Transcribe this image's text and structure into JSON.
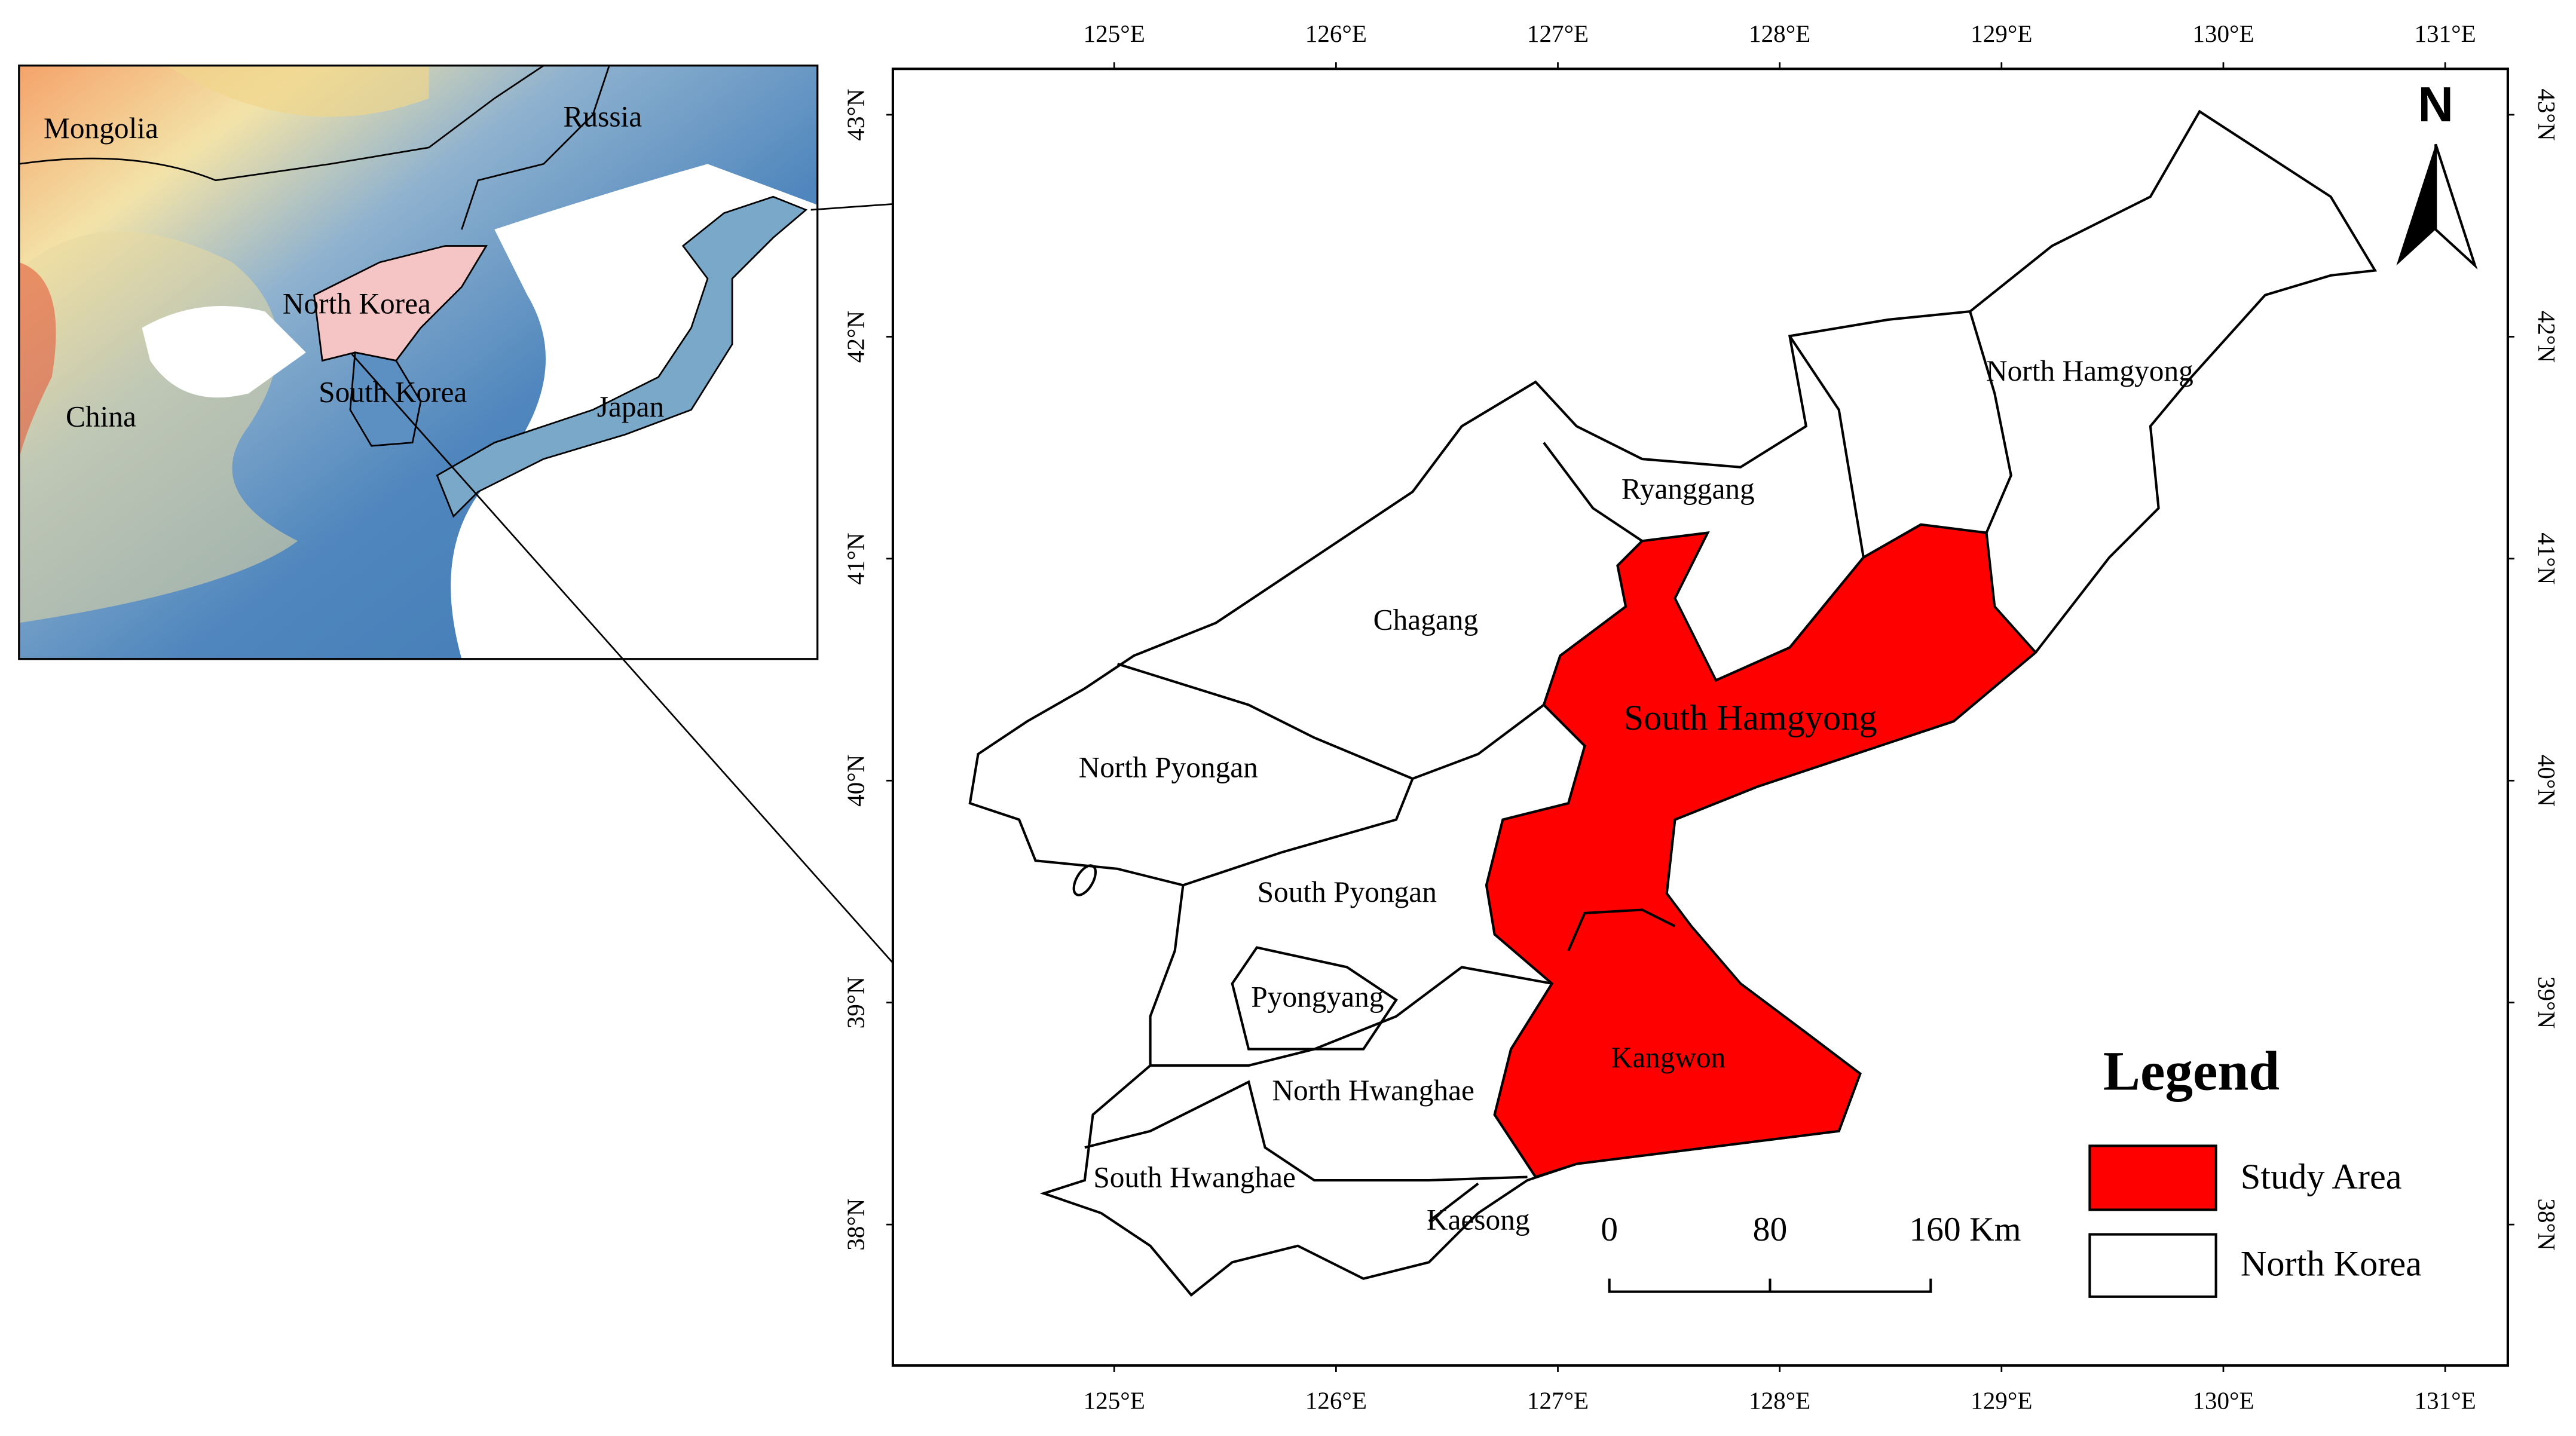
{
  "inset": {
    "labels": [
      "Mongolia",
      "Russia",
      "North Korea",
      "China",
      "South Korea",
      "Japan"
    ]
  },
  "main_map": {
    "longitude_labels": [
      "125°E",
      "126°E",
      "127°E",
      "128°E",
      "129°E",
      "130°E",
      "131°E"
    ],
    "latitude_labels": [
      "43°N",
      "42°N",
      "41°N",
      "40°N",
      "39°N",
      "38°N"
    ],
    "province_labels": [
      "North Hamgyong",
      "Ryanggang",
      "Chagang",
      "South Hamgyong",
      "North Pyongan",
      "South Pyongan",
      "Pyongyang",
      "North Hwanghae",
      "Kangwon",
      "South Hwanghae",
      "Kaesong"
    ],
    "north_arrow": "N"
  },
  "legend": {
    "title": "Legend",
    "items": [
      "Study Area",
      "North Korea"
    ]
  },
  "scale_bar": {
    "labels": [
      "0",
      "80",
      "160 Km"
    ]
  }
}
